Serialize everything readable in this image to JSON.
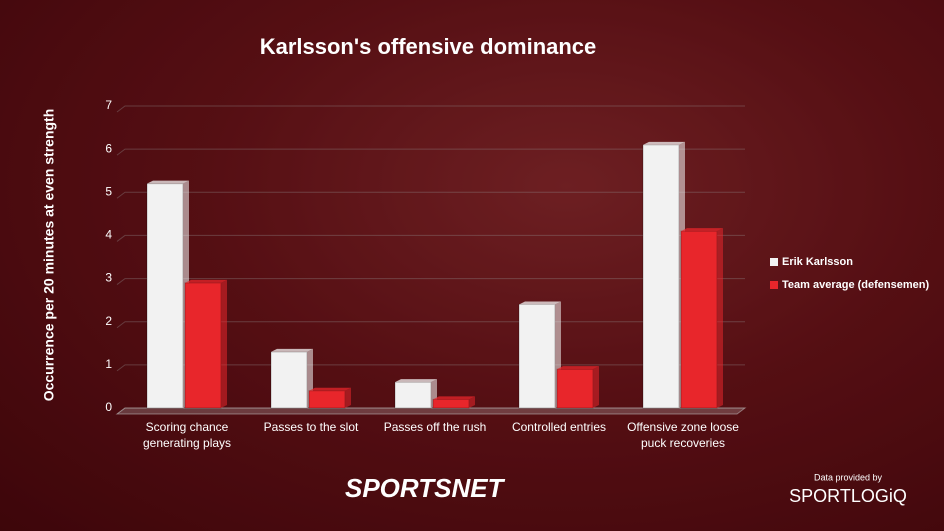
{
  "chart_data": {
    "type": "bar",
    "title": "Karlsson's offensive dominance",
    "y_label": "Occurrence per 20 minutes at even strength",
    "categories": [
      "Scoring chance generating plays",
      "Passes to the slot",
      "Passes off the rush",
      "Controlled entries",
      "Offensive zone loose puck recoveries"
    ],
    "series": [
      {
        "name": "Erik Karlsson",
        "color": "#f2f2f2",
        "values": [
          5.2,
          1.3,
          0.6,
          2.4,
          6.1
        ]
      },
      {
        "name": "Team average (defensemen)",
        "color": "#e8262b",
        "values": [
          2.9,
          0.4,
          0.2,
          0.9,
          4.1
        ]
      }
    ],
    "ylim": [
      0,
      7
    ],
    "yticks": [
      0,
      1,
      2,
      3,
      4,
      5,
      6,
      7
    ],
    "grid": true,
    "legend": "right"
  },
  "branding": {
    "logo": "SPORTSNET",
    "credit": "Data provided by",
    "provider": "SPORTLOGiQ"
  }
}
